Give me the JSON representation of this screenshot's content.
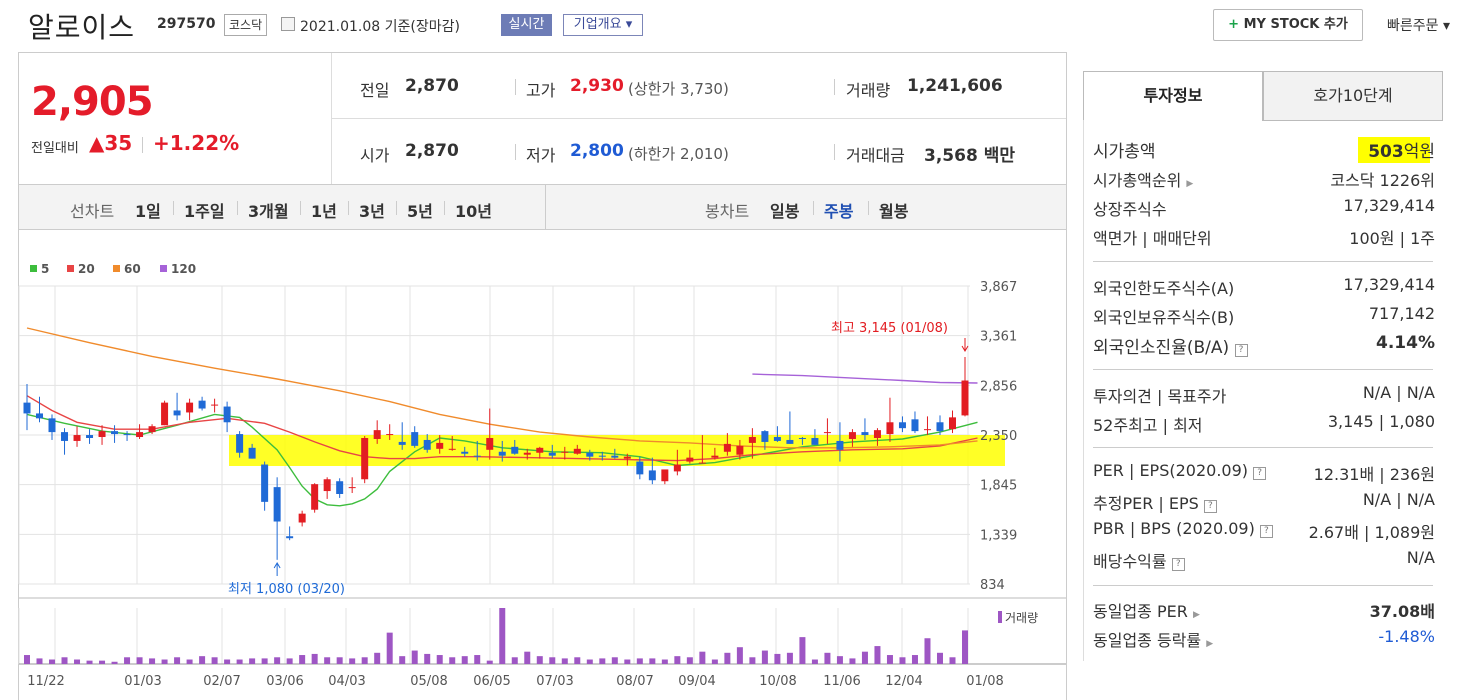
{
  "header": {
    "name": "알로이스",
    "code": "297570",
    "market": "코스닥",
    "date": "2021.01.08 기준(장마감)",
    "realtime": "실시간",
    "company_overview": "기업개요 ▾",
    "mystock_plus": "+",
    "mystock": "MY STOCK 추가",
    "quick_order": "빠른주문 ▾"
  },
  "price": {
    "current": "2,905",
    "change_label": "전일대비",
    "change_arrow": "▲",
    "change_value": "35",
    "change_pct": "+1.22%"
  },
  "summary": {
    "prev_label": "전일",
    "prev": "2,870",
    "open_label": "시가",
    "open": "2,870",
    "high_label": "고가",
    "high": "2,930",
    "upper_limit": "(상한가 3,730)",
    "low_label": "저가",
    "low": "2,800",
    "lower_limit": "(하한가 2,010)",
    "volume_label": "거래량",
    "volume": "1,241,606",
    "amount_label": "거래대금",
    "amount": "3,568 백만"
  },
  "tabs": {
    "line_label": "선차트",
    "line": [
      "1일",
      "1주일",
      "3개월",
      "1년",
      "3년",
      "5년",
      "10년"
    ],
    "candle_label": "봉차트",
    "candle": [
      "일봉",
      "주봉",
      "월봉"
    ],
    "candle_selected": "주봉"
  },
  "chart_data": {
    "type": "candlestick",
    "period": "weekly",
    "legend": [
      {
        "name": "5",
        "color": "#3dbd3d"
      },
      {
        "name": "20",
        "color": "#e84545"
      },
      {
        "name": "60",
        "color": "#f08b2c"
      },
      {
        "name": "120",
        "color": "#a662d8"
      }
    ],
    "y_ticks": [
      "3,867",
      "3,361",
      "2,856",
      "2,350",
      "1,845",
      "1,339",
      "834"
    ],
    "ylim": [
      834,
      3867
    ],
    "x_labels": [
      "11/22",
      "01/03",
      "02/07",
      "03/06",
      "04/03",
      "05/08",
      "06/05",
      "07/03",
      "08/07",
      "09/04",
      "10/08",
      "11/06",
      "12/04",
      "01/08"
    ],
    "annotations": {
      "high": "최고 3,145 (01/08)",
      "low": "최저 1,080 (03/20)"
    },
    "volume_label": "거래량",
    "candles": [
      [
        2680,
        2870,
        2400,
        2570
      ],
      [
        2570,
        2740,
        2480,
        2520
      ],
      [
        2520,
        2560,
        2300,
        2380
      ],
      [
        2380,
        2420,
        2150,
        2290
      ],
      [
        2290,
        2440,
        2230,
        2350
      ],
      [
        2350,
        2410,
        2260,
        2320
      ],
      [
        2330,
        2450,
        2250,
        2390
      ],
      [
        2390,
        2450,
        2270,
        2360
      ],
      [
        2360,
        2390,
        2290,
        2350
      ],
      [
        2330,
        2460,
        2310,
        2380
      ],
      [
        2380,
        2460,
        2360,
        2440
      ],
      [
        2450,
        2700,
        2450,
        2680
      ],
      [
        2600,
        2780,
        2500,
        2550
      ],
      [
        2580,
        2720,
        2500,
        2680
      ],
      [
        2700,
        2740,
        2600,
        2620
      ],
      [
        2650,
        2720,
        2580,
        2660
      ],
      [
        2640,
        2690,
        2380,
        2480
      ],
      [
        2360,
        2390,
        2120,
        2170
      ],
      [
        2220,
        2260,
        2110,
        2110
      ],
      [
        2050,
        2080,
        1580,
        1670
      ],
      [
        1820,
        1920,
        1080,
        1470
      ],
      [
        1320,
        1420,
        1280,
        1300
      ],
      [
        1460,
        1580,
        1420,
        1550
      ],
      [
        1590,
        1860,
        1560,
        1850
      ],
      [
        1780,
        1920,
        1700,
        1900
      ],
      [
        1880,
        1910,
        1710,
        1750
      ],
      [
        1810,
        1920,
        1760,
        1820
      ],
      [
        1900,
        2340,
        1860,
        2320
      ],
      [
        2310,
        2500,
        2260,
        2400
      ],
      [
        2350,
        2460,
        2300,
        2360
      ],
      [
        2280,
        2480,
        2200,
        2250
      ],
      [
        2380,
        2440,
        2220,
        2240
      ],
      [
        2300,
        2360,
        2170,
        2200
      ],
      [
        2210,
        2350,
        2160,
        2270
      ],
      [
        2200,
        2340,
        2190,
        2210
      ],
      [
        2180,
        2230,
        2130,
        2160
      ],
      [
        2140,
        2290,
        2090,
        2130
      ],
      [
        2200,
        2620,
        2100,
        2320
      ],
      [
        2180,
        2290,
        2080,
        2140
      ],
      [
        2230,
        2300,
        2150,
        2160
      ],
      [
        2150,
        2210,
        2100,
        2170
      ],
      [
        2170,
        2230,
        2110,
        2220
      ],
      [
        2170,
        2250,
        2110,
        2140
      ],
      [
        2170,
        2230,
        2100,
        2180
      ],
      [
        2160,
        2250,
        2150,
        2210
      ],
      [
        2170,
        2200,
        2090,
        2130
      ],
      [
        2140,
        2180,
        2090,
        2130
      ],
      [
        2140,
        2210,
        2110,
        2120
      ],
      [
        2110,
        2160,
        2040,
        2130
      ],
      [
        2080,
        2130,
        1900,
        1950
      ],
      [
        1990,
        2120,
        1850,
        1890
      ],
      [
        1880,
        1980,
        1850,
        2000
      ],
      [
        1980,
        2200,
        1940,
        2050
      ],
      [
        2080,
        2200,
        2060,
        2120
      ],
      [
        2070,
        2350,
        2060,
        2070
      ],
      [
        2120,
        2220,
        2100,
        2140
      ],
      [
        2180,
        2370,
        2140,
        2260
      ],
      [
        2150,
        2300,
        2100,
        2240
      ],
      [
        2270,
        2420,
        2110,
        2330
      ],
      [
        2390,
        2400,
        2200,
        2280
      ],
      [
        2330,
        2440,
        2280,
        2290
      ],
      [
        2300,
        2590,
        2260,
        2260
      ],
      [
        2320,
        2330,
        2250,
        2310
      ],
      [
        2320,
        2410,
        2250,
        2250
      ],
      [
        2370,
        2520,
        2260,
        2380
      ],
      [
        2290,
        2480,
        2080,
        2200
      ],
      [
        2310,
        2410,
        2230,
        2380
      ],
      [
        2380,
        2520,
        2300,
        2350
      ],
      [
        2320,
        2420,
        2240,
        2400
      ],
      [
        2360,
        2730,
        2280,
        2480
      ],
      [
        2480,
        2540,
        2380,
        2420
      ],
      [
        2510,
        2590,
        2370,
        2390
      ],
      [
        2410,
        2540,
        2350,
        2410
      ],
      [
        2480,
        2550,
        2350,
        2390
      ],
      [
        2410,
        2600,
        2370,
        2530
      ],
      [
        2550,
        3145,
        2540,
        2905
      ]
    ],
    "ma_series": {
      "5": [
        [
          0,
          2560
        ],
        [
          3,
          2470
        ],
        [
          6,
          2390
        ],
        [
          9,
          2350
        ],
        [
          12,
          2450
        ],
        [
          15,
          2560
        ],
        [
          17,
          2530
        ],
        [
          18,
          2430
        ],
        [
          20,
          2200
        ],
        [
          21,
          2020
        ],
        [
          22,
          1830
        ],
        [
          23,
          1700
        ],
        [
          24,
          1640
        ],
        [
          25,
          1630
        ],
        [
          26,
          1650
        ],
        [
          27,
          1700
        ],
        [
          28,
          1800
        ],
        [
          29,
          1980
        ],
        [
          31,
          2180
        ],
        [
          33,
          2320
        ],
        [
          35,
          2290
        ],
        [
          38,
          2220
        ],
        [
          42,
          2180
        ],
        [
          46,
          2170
        ],
        [
          49,
          2130
        ],
        [
          52,
          2040
        ],
        [
          55,
          2070
        ],
        [
          58,
          2140
        ],
        [
          62,
          2230
        ],
        [
          66,
          2280
        ],
        [
          70,
          2310
        ],
        [
          73,
          2380
        ],
        [
          76,
          2480
        ]
      ],
      "20": [
        [
          0,
          2750
        ],
        [
          2,
          2600
        ],
        [
          4,
          2480
        ],
        [
          7,
          2410
        ],
        [
          10,
          2410
        ],
        [
          13,
          2480
        ],
        [
          16,
          2520
        ],
        [
          19,
          2470
        ],
        [
          21,
          2380
        ],
        [
          23,
          2280
        ],
        [
          25,
          2190
        ],
        [
          27,
          2130
        ],
        [
          29,
          2110
        ],
        [
          31,
          2110
        ],
        [
          33,
          2130
        ],
        [
          36,
          2130
        ],
        [
          40,
          2120
        ],
        [
          44,
          2110
        ],
        [
          48,
          2100
        ],
        [
          52,
          2090
        ],
        [
          55,
          2110
        ],
        [
          58,
          2150
        ],
        [
          62,
          2180
        ],
        [
          66,
          2200
        ],
        [
          70,
          2210
        ],
        [
          73,
          2240
        ],
        [
          76,
          2320
        ]
      ],
      "60": [
        [
          0,
          3440
        ],
        [
          5,
          3290
        ],
        [
          10,
          3150
        ],
        [
          15,
          3030
        ],
        [
          20,
          2920
        ],
        [
          25,
          2800
        ],
        [
          29,
          2690
        ],
        [
          33,
          2560
        ],
        [
          37,
          2460
        ],
        [
          41,
          2380
        ],
        [
          45,
          2330
        ],
        [
          49,
          2290
        ],
        [
          53,
          2270
        ],
        [
          57,
          2240
        ],
        [
          61,
          2220
        ],
        [
          65,
          2220
        ],
        [
          69,
          2230
        ],
        [
          73,
          2250
        ],
        [
          76,
          2290
        ]
      ],
      "120": [
        [
          58,
          2970
        ],
        [
          62,
          2955
        ],
        [
          66,
          2930
        ],
        [
          70,
          2905
        ],
        [
          73,
          2885
        ],
        [
          76,
          2880
        ]
      ]
    },
    "volume": [
      8,
      5,
      4,
      6,
      4,
      3,
      3,
      2,
      6,
      6,
      5,
      4,
      6,
      4,
      7,
      6,
      4,
      4,
      5,
      5,
      6,
      5,
      8,
      9,
      6,
      6,
      5,
      6,
      10,
      28,
      7,
      12,
      9,
      8,
      6,
      7,
      8,
      3,
      50,
      6,
      11,
      7,
      6,
      5,
      6,
      4,
      5,
      6,
      4,
      5,
      5,
      4,
      7,
      6,
      11,
      4,
      10,
      15,
      6,
      12,
      9,
      10,
      24,
      4,
      10,
      7,
      5,
      11,
      16,
      8,
      6,
      8,
      23,
      10,
      6,
      30
    ]
  },
  "invest": {
    "tab1": "투자정보",
    "tab2": "호가10단계",
    "rows1": [
      {
        "l": "시가총액",
        "r_num": "503",
        "r_unit": "억원"
      },
      {
        "l": "시가총액순위",
        "r": "코스닥 1226위"
      },
      {
        "l": "상장주식수",
        "r": "17,329,414"
      },
      {
        "l": "액면가 | 매매단위",
        "r": "100원 | 1주"
      }
    ],
    "rows2": [
      {
        "l": "외국인한도주식수(A)",
        "r": "17,329,414"
      },
      {
        "l": "외국인보유주식수(B)",
        "r": "717,142"
      },
      {
        "l": "외국인소진율(B/A)",
        "r": "4.14%"
      }
    ],
    "rows3": [
      {
        "l": "투자의견 | 목표주가",
        "r": "N/A | N/A"
      },
      {
        "l": "52주최고 | 최저",
        "r": "3,145 | 1,080"
      }
    ],
    "rows4": [
      {
        "l": "PER | EPS(2020.09)",
        "r": "12.31배 | 236원"
      },
      {
        "l": "추정PER | EPS",
        "r": "N/A | N/A"
      },
      {
        "l": "PBR | BPS (2020.09)",
        "r": "2.67배 | 1,089원"
      },
      {
        "l": "배당수익률",
        "r": "N/A"
      }
    ],
    "rows5": [
      {
        "l": "동일업종 PER",
        "r": "37.08배"
      },
      {
        "l": "동일업종 등락률",
        "r": "-1.48%"
      }
    ]
  }
}
